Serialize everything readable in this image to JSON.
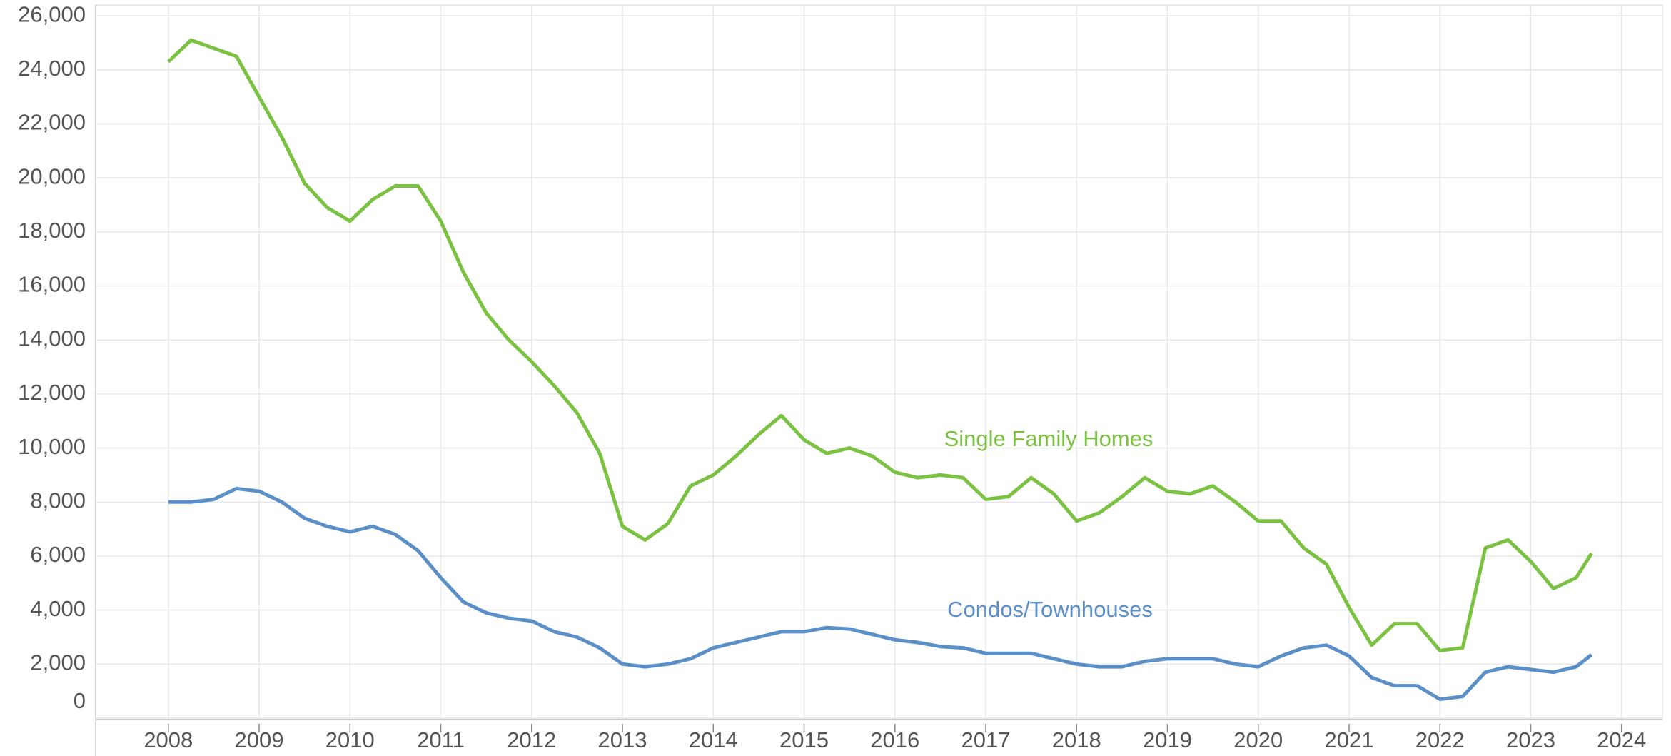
{
  "chart_data": {
    "type": "line",
    "x": [
      2008.0,
      2008.25,
      2008.5,
      2008.75,
      2009.0,
      2009.25,
      2009.5,
      2009.75,
      2010.0,
      2010.25,
      2010.5,
      2010.75,
      2011.0,
      2011.25,
      2011.5,
      2011.75,
      2012.0,
      2012.25,
      2012.5,
      2012.75,
      2013.0,
      2013.25,
      2013.5,
      2013.75,
      2014.0,
      2014.25,
      2014.5,
      2014.75,
      2015.0,
      2015.25,
      2015.5,
      2015.75,
      2016.0,
      2016.25,
      2016.5,
      2016.75,
      2017.0,
      2017.25,
      2017.5,
      2017.75,
      2018.0,
      2018.25,
      2018.5,
      2018.75,
      2019.0,
      2019.25,
      2019.5,
      2019.75,
      2020.0,
      2020.25,
      2020.5,
      2020.75,
      2021.0,
      2021.25,
      2021.5,
      2021.75,
      2022.0,
      2022.25,
      2022.5,
      2022.75,
      2023.0,
      2023.25,
      2023.5,
      2023.67
    ],
    "series": [
      {
        "name": "Single Family Homes",
        "color": "#7cc242",
        "values": [
          24300,
          25100,
          24800,
          24500,
          23000,
          21500,
          19800,
          18900,
          18400,
          19200,
          19700,
          19700,
          18400,
          16500,
          15000,
          14000,
          13200,
          12300,
          11300,
          9800,
          7100,
          6600,
          7200,
          8600,
          9000,
          9700,
          10500,
          11200,
          10300,
          9800,
          10000,
          9700,
          9100,
          8900,
          9000,
          8900,
          8100,
          8200,
          8900,
          8300,
          7300,
          7600,
          8200,
          8900,
          8400,
          8300,
          8600,
          8000,
          7300,
          7300,
          6300,
          5700,
          4100,
          2700,
          3500,
          3500,
          2500,
          2600,
          6300,
          6600,
          5800,
          4800,
          5200,
          6100
        ]
      },
      {
        "name": "Condos/Townhouses",
        "color": "#5b8fc7",
        "values": [
          8000,
          8000,
          8100,
          8500,
          8400,
          8000,
          7400,
          7100,
          6900,
          7100,
          6800,
          6200,
          5200,
          4300,
          3900,
          3700,
          3600,
          3200,
          3000,
          2600,
          2000,
          1900,
          2000,
          2200,
          2600,
          2800,
          3000,
          3200,
          3200,
          3350,
          3300,
          3100,
          2900,
          2800,
          2650,
          2600,
          2400,
          2400,
          2400,
          2200,
          2000,
          1900,
          1900,
          2100,
          2200,
          2200,
          2200,
          2000,
          1900,
          2300,
          2600,
          2700,
          2300,
          1500,
          1200,
          1200,
          700,
          800,
          1700,
          1900,
          1800,
          1700,
          1900,
          2350
        ]
      }
    ],
    "xlim": [
      2007.2,
      2024.45
    ],
    "xticks": [
      2008,
      2009,
      2010,
      2011,
      2012,
      2013,
      2014,
      2015,
      2016,
      2017,
      2018,
      2019,
      2020,
      2021,
      2022,
      2023,
      2024
    ],
    "ylim": [
      0,
      26400
    ],
    "yticks": [
      0,
      {
        "value": 2000,
        "label": "2,000"
      },
      {
        "value": 4000,
        "label": "4,000"
      },
      {
        "value": 6000,
        "label": "6,000"
      },
      {
        "value": 8000,
        "label": "8,000"
      },
      {
        "value": 10000,
        "label": "10,000"
      },
      {
        "value": 12000,
        "label": "12,000"
      },
      {
        "value": 14000,
        "label": "14,000"
      },
      {
        "value": 16000,
        "label": "16,000"
      },
      {
        "value": 18000,
        "label": "18,000"
      },
      {
        "value": 20000,
        "label": "20,000"
      },
      {
        "value": 22000,
        "label": "22,000"
      },
      {
        "value": 24000,
        "label": "24,000"
      },
      {
        "value": 26000,
        "label": "26,000"
      }
    ],
    "grid": true
  }
}
